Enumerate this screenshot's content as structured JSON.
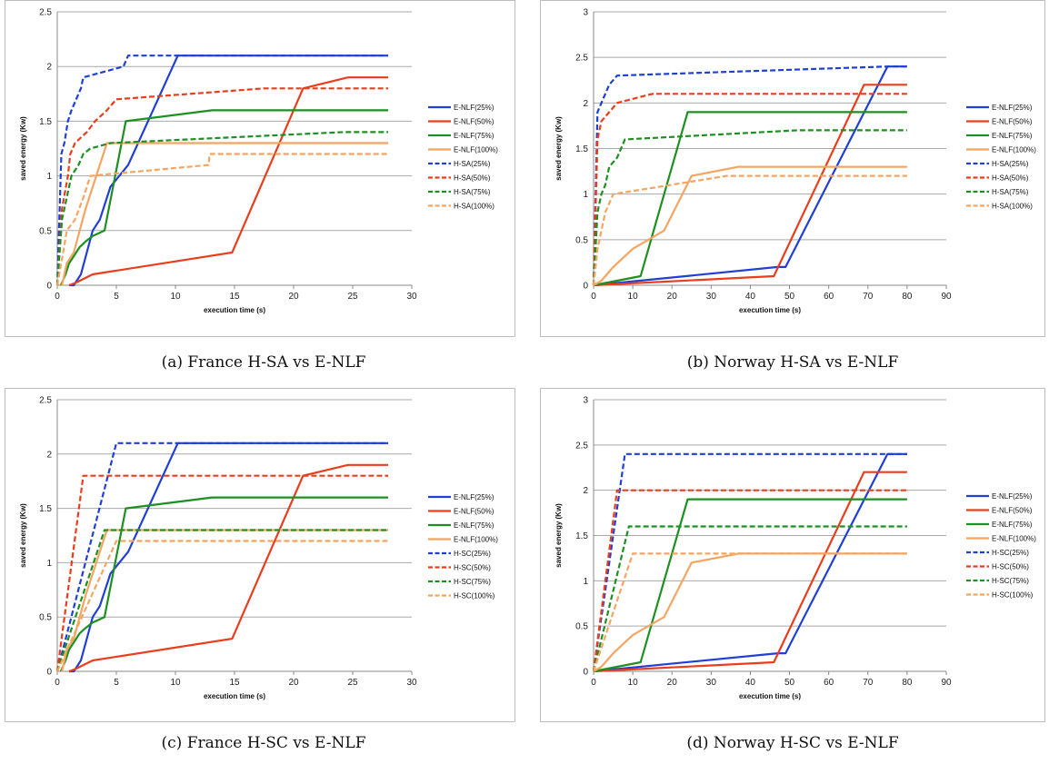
{
  "captions": [
    "(a) France H-SA vs E-NLF",
    "(b) Norway H-SA vs E-NLF",
    "(c) France H-SC vs E-NLF",
    "(d) Norway H-SC vs E-NLF"
  ],
  "chart_data": [
    {
      "type": "line",
      "xlabel": "execution time (s)",
      "ylabel": "saved energy (Kw)",
      "xlim": [
        0,
        30
      ],
      "ylim": [
        0,
        2.5
      ],
      "xticks": [
        0,
        5,
        10,
        15,
        20,
        25,
        30
      ],
      "yticks": [
        0,
        0.5,
        1,
        1.5,
        2,
        2.5
      ],
      "grid": "horizontal",
      "legend": "right",
      "series": [
        {
          "name": "E-NLF(25%)",
          "color": "#1f3fd6",
          "dash": "solid",
          "x": [
            1,
            1.4,
            2,
            3,
            3.6,
            4.5,
            6,
            10.2,
            28
          ],
          "y": [
            0,
            0,
            0.1,
            0.5,
            0.6,
            0.9,
            1.1,
            2.1,
            2.1
          ]
        },
        {
          "name": "E-NLF(50%)",
          "color": "#ea3d1c",
          "dash": "solid",
          "x": [
            1,
            1.5,
            3,
            14.8,
            20.8,
            24.6,
            28
          ],
          "y": [
            0,
            0.02,
            0.1,
            0.3,
            1.8,
            1.9,
            1.9
          ]
        },
        {
          "name": "E-NLF(75%)",
          "color": "#1c9020",
          "dash": "solid",
          "x": [
            0.3,
            0.7,
            1,
            1.9,
            2.4,
            3,
            4,
            5.8,
            13.1,
            28
          ],
          "y": [
            0,
            0.1,
            0.2,
            0.35,
            0.4,
            0.45,
            0.5,
            1.5,
            1.6,
            1.6
          ]
        },
        {
          "name": "E-NLF(100%)",
          "color": "#f5a561",
          "dash": "solid",
          "x": [
            0.4,
            0.8,
            1.4,
            2.4,
            4.2,
            28
          ],
          "y": [
            0,
            0.2,
            0.3,
            0.7,
            1.3,
            1.3
          ]
        },
        {
          "name": "H-SA(25%)",
          "color": "#1f3fd6",
          "dash": "dashed",
          "x": [
            0,
            0.35,
            0.6,
            0.9,
            1.2,
            1.6,
            2,
            2.2,
            5.6,
            6,
            28
          ],
          "y": [
            0,
            1.2,
            1.3,
            1.5,
            1.6,
            1.7,
            1.8,
            1.9,
            2,
            2.1,
            2.1
          ]
        },
        {
          "name": "H-SA(50%)",
          "color": "#ea3d1c",
          "dash": "dashed",
          "x": [
            0,
            0.4,
            0.9,
            1.1,
            1.5,
            2.5,
            3.2,
            4.2,
            5,
            17.5,
            28
          ],
          "y": [
            0,
            0.7,
            1,
            1.2,
            1.3,
            1.4,
            1.5,
            1.6,
            1.7,
            1.8,
            1.8
          ]
        },
        {
          "name": "H-SA(75%)",
          "color": "#1c9020",
          "dash": "dashed",
          "x": [
            0,
            0.4,
            0.8,
            1.2,
            1.8,
            2.2,
            2.8,
            4.5,
            24.2,
            28
          ],
          "y": [
            0,
            0.6,
            0.8,
            1,
            1.1,
            1.2,
            1.25,
            1.3,
            1.4,
            1.4
          ]
        },
        {
          "name": "H-SA(100%)",
          "color": "#f5a561",
          "dash": "dashed",
          "x": [
            0,
            0.5,
            0.8,
            1.5,
            2.2,
            2.8,
            12.8,
            12.9,
            28
          ],
          "y": [
            0,
            0.3,
            0.5,
            0.6,
            0.8,
            1,
            1.1,
            1.2,
            1.2
          ]
        }
      ]
    },
    {
      "type": "line",
      "xlabel": "execution time (s)",
      "ylabel": "saved energy (Kw)",
      "xlim": [
        0,
        90
      ],
      "ylim": [
        0,
        3
      ],
      "xticks": [
        0,
        10,
        20,
        30,
        40,
        50,
        60,
        70,
        80,
        90
      ],
      "yticks": [
        0,
        0.5,
        1,
        1.5,
        2,
        2.5,
        3
      ],
      "grid": "horizontal",
      "legend": "right",
      "series": [
        {
          "name": "E-NLF(25%)",
          "color": "#1f3fd6",
          "dash": "solid",
          "x": [
            0,
            47,
            49,
            75,
            80
          ],
          "y": [
            0,
            0.2,
            0.2,
            2.4,
            2.4
          ]
        },
        {
          "name": "E-NLF(50%)",
          "color": "#ea3d1c",
          "dash": "solid",
          "x": [
            0,
            46,
            69,
            80
          ],
          "y": [
            0,
            0.1,
            2.2,
            2.2
          ]
        },
        {
          "name": "E-NLF(75%)",
          "color": "#1c9020",
          "dash": "solid",
          "x": [
            0,
            12,
            24,
            80
          ],
          "y": [
            0,
            0.1,
            1.9,
            1.9
          ]
        },
        {
          "name": "E-NLF(100%)",
          "color": "#f5a561",
          "dash": "solid",
          "x": [
            0,
            2,
            5,
            10,
            18,
            25,
            37,
            80
          ],
          "y": [
            0,
            0.05,
            0.2,
            0.4,
            0.6,
            1.2,
            1.3,
            1.3
          ]
        },
        {
          "name": "H-SA(25%)",
          "color": "#1f3fd6",
          "dash": "dashed",
          "x": [
            0,
            1,
            2,
            3,
            4,
            6,
            75,
            80
          ],
          "y": [
            0,
            1.9,
            2,
            2.1,
            2.2,
            2.3,
            2.4,
            2.4
          ]
        },
        {
          "name": "H-SA(50%)",
          "color": "#ea3d1c",
          "dash": "dashed",
          "x": [
            0,
            1,
            2,
            3,
            4,
            6,
            15,
            80
          ],
          "y": [
            0,
            1.6,
            1.8,
            1.85,
            1.9,
            2,
            2.1,
            2.1
          ]
        },
        {
          "name": "H-SA(75%)",
          "color": "#1c9020",
          "dash": "dashed",
          "x": [
            0,
            1,
            2,
            3,
            4,
            6,
            8,
            52,
            80
          ],
          "y": [
            0,
            0.8,
            1,
            1.1,
            1.3,
            1.4,
            1.6,
            1.7,
            1.7
          ]
        },
        {
          "name": "H-SA(100%)",
          "color": "#f5a561",
          "dash": "dashed",
          "x": [
            0,
            1,
            2,
            3,
            5,
            34,
            80
          ],
          "y": [
            0,
            0.4,
            0.6,
            0.8,
            1,
            1.2,
            1.2
          ]
        }
      ]
    },
    {
      "type": "line",
      "xlabel": "execution time (s)",
      "ylabel": "saved energy (Kw)",
      "xlim": [
        0,
        30
      ],
      "ylim": [
        0,
        2.5
      ],
      "xticks": [
        0,
        5,
        10,
        15,
        20,
        25,
        30
      ],
      "yticks": [
        0,
        0.5,
        1,
        1.5,
        2,
        2.5
      ],
      "grid": "horizontal",
      "legend": "right",
      "series": [
        {
          "name": "E-NLF(25%)",
          "color": "#1f3fd6",
          "dash": "solid",
          "x": [
            1,
            1.4,
            2,
            3,
            3.6,
            4.5,
            6,
            10.2,
            28
          ],
          "y": [
            0,
            0,
            0.1,
            0.5,
            0.6,
            0.9,
            1.1,
            2.1,
            2.1
          ]
        },
        {
          "name": "E-NLF(50%)",
          "color": "#ea3d1c",
          "dash": "solid",
          "x": [
            1,
            1.5,
            3,
            14.8,
            20.8,
            24.6,
            28
          ],
          "y": [
            0,
            0.02,
            0.1,
            0.3,
            1.8,
            1.9,
            1.9
          ]
        },
        {
          "name": "E-NLF(75%)",
          "color": "#1c9020",
          "dash": "solid",
          "x": [
            0.3,
            0.7,
            1,
            1.9,
            2.4,
            3,
            4,
            5.8,
            13.1,
            28
          ],
          "y": [
            0,
            0.1,
            0.2,
            0.35,
            0.4,
            0.45,
            0.5,
            1.5,
            1.6,
            1.6
          ]
        },
        {
          "name": "E-NLF(100%)",
          "color": "#f5a561",
          "dash": "solid",
          "x": [
            0.4,
            0.8,
            1.4,
            2.4,
            4.2,
            28
          ],
          "y": [
            0,
            0.2,
            0.3,
            0.7,
            1.3,
            1.3
          ]
        },
        {
          "name": "H-SC(25%)",
          "color": "#1f3fd6",
          "dash": "dashed",
          "x": [
            0,
            5,
            28
          ],
          "y": [
            0,
            2.1,
            2.1
          ]
        },
        {
          "name": "H-SC(50%)",
          "color": "#ea3d1c",
          "dash": "dashed",
          "x": [
            0,
            2.2,
            28
          ],
          "y": [
            0,
            1.8,
            1.8
          ]
        },
        {
          "name": "H-SC(75%)",
          "color": "#1c9020",
          "dash": "dashed",
          "x": [
            0,
            4,
            28
          ],
          "y": [
            0,
            1.3,
            1.3
          ]
        },
        {
          "name": "H-SC(100%)",
          "color": "#f5a561",
          "dash": "dashed",
          "x": [
            0,
            5,
            28
          ],
          "y": [
            0,
            1.2,
            1.2
          ]
        }
      ]
    },
    {
      "type": "line",
      "xlabel": "execution time (s)",
      "ylabel": "saved energy (Kw)",
      "xlim": [
        0,
        90
      ],
      "ylim": [
        0,
        3
      ],
      "xticks": [
        0,
        10,
        20,
        30,
        40,
        50,
        60,
        70,
        80,
        90
      ],
      "yticks": [
        0,
        0.5,
        1,
        1.5,
        2,
        2.5,
        3
      ],
      "grid": "horizontal",
      "legend": "right",
      "series": [
        {
          "name": "E-NLF(25%)",
          "color": "#1f3fd6",
          "dash": "solid",
          "x": [
            0,
            47,
            49,
            75,
            80
          ],
          "y": [
            0,
            0.2,
            0.2,
            2.4,
            2.4
          ]
        },
        {
          "name": "E-NLF(50%)",
          "color": "#ea3d1c",
          "dash": "solid",
          "x": [
            0,
            46,
            69,
            80
          ],
          "y": [
            0,
            0.1,
            2.2,
            2.2
          ]
        },
        {
          "name": "E-NLF(75%)",
          "color": "#1c9020",
          "dash": "solid",
          "x": [
            0,
            12,
            24,
            80
          ],
          "y": [
            0,
            0.1,
            1.9,
            1.9
          ]
        },
        {
          "name": "E-NLF(100%)",
          "color": "#f5a561",
          "dash": "solid",
          "x": [
            0,
            2,
            5,
            10,
            18,
            25,
            37,
            80
          ],
          "y": [
            0,
            0.05,
            0.2,
            0.4,
            0.6,
            1.2,
            1.3,
            1.3
          ]
        },
        {
          "name": "H-SC(25%)",
          "color": "#1f3fd6",
          "dash": "dashed",
          "x": [
            0,
            8,
            80
          ],
          "y": [
            0,
            2.4,
            2.4
          ]
        },
        {
          "name": "H-SC(50%)",
          "color": "#ea3d1c",
          "dash": "dashed",
          "x": [
            0,
            6,
            80
          ],
          "y": [
            0,
            2,
            2
          ]
        },
        {
          "name": "H-SC(75%)",
          "color": "#1c9020",
          "dash": "dashed",
          "x": [
            0,
            9,
            80
          ],
          "y": [
            0,
            1.6,
            1.6
          ]
        },
        {
          "name": "H-SC(100%)",
          "color": "#f5a561",
          "dash": "dashed",
          "x": [
            0,
            10,
            80
          ],
          "y": [
            0,
            1.3,
            1.3
          ]
        }
      ]
    }
  ]
}
